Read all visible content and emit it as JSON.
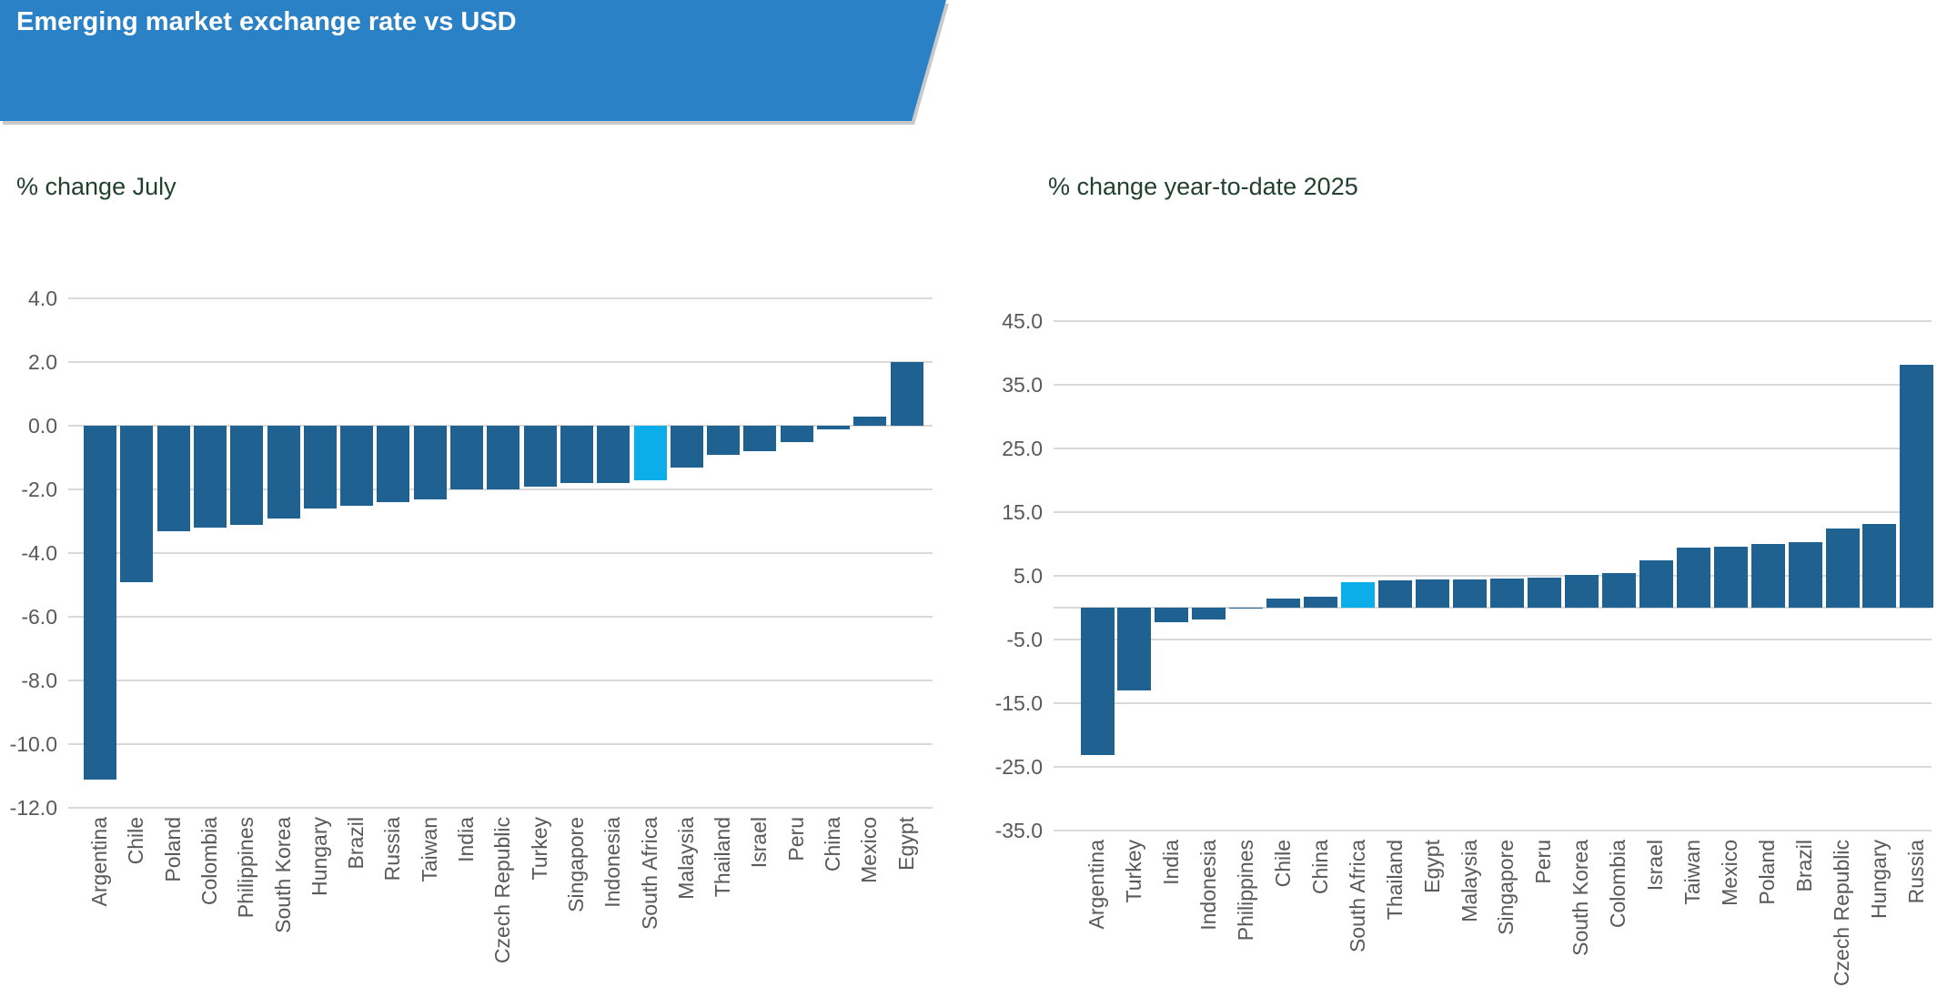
{
  "banner": {
    "title": "Emerging market exchange rate vs USD",
    "bg_color": "#2A81C5",
    "text_color": "#FFFFFF"
  },
  "colors": {
    "bar": "#1F6191",
    "highlight_bar": "#0BAEE9",
    "gridline": "#D9D9D9",
    "axis_text": "#595959",
    "chart_title_text": "#22402E"
  },
  "chart_data": [
    {
      "type": "bar",
      "title": "% change July",
      "categories": [
        "Argentina",
        "Chile",
        "Poland",
        "Colombia",
        "Philippines",
        "South Korea",
        "Hungary",
        "Brazil",
        "Russia",
        "Taiwan",
        "India",
        "Czech Republic",
        "Turkey",
        "Singapore",
        "Indonesia",
        "South Africa",
        "Malaysia",
        "Thailand",
        "Israel",
        "Peru",
        "China",
        "Mexico",
        "Egypt"
      ],
      "values": [
        -11.1,
        -4.9,
        -3.3,
        -3.2,
        -3.1,
        -2.9,
        -2.6,
        -2.5,
        -2.4,
        -2.3,
        -2.0,
        -2.0,
        -1.9,
        -1.8,
        -1.8,
        -1.7,
        -1.3,
        -0.9,
        -0.8,
        -0.5,
        -0.1,
        0.3,
        2.0
      ],
      "highlight_category": "South Africa",
      "ylim": [
        -12.0,
        4.0
      ],
      "yticks": [
        4.0,
        2.0,
        0.0,
        -2.0,
        -4.0,
        -6.0,
        -8.0,
        -10.0,
        -12.0
      ],
      "grid": true,
      "legend": "none",
      "xlabel": "",
      "ylabel": ""
    },
    {
      "type": "bar",
      "title": "% change year-to-date 2025",
      "categories": [
        "Argentina",
        "Turkey",
        "India",
        "Indonesia",
        "Philippines",
        "Chile",
        "China",
        "South Africa",
        "Thailand",
        "Egypt",
        "Malaysia",
        "Singapore",
        "Peru",
        "South Korea",
        "Colombia",
        "Israel",
        "Taiwan",
        "Mexico",
        "Poland",
        "Brazil",
        "Czech Republic",
        "Hungary",
        "Russia"
      ],
      "values": [
        -23.2,
        -13.0,
        -2.3,
        -1.8,
        -0.2,
        1.4,
        1.7,
        4.0,
        4.3,
        4.4,
        4.5,
        4.6,
        4.7,
        5.2,
        5.4,
        7.5,
        9.5,
        9.6,
        10.0,
        10.3,
        12.4,
        13.1,
        38.1
      ],
      "highlight_category": "South Africa",
      "ylim": [
        -35.0,
        45.0
      ],
      "yticks": [
        45.0,
        35.0,
        25.0,
        15.0,
        5.0,
        -5.0,
        -15.0,
        -25.0,
        -35.0
      ],
      "grid": true,
      "legend": "none",
      "xlabel": "",
      "ylabel": ""
    }
  ]
}
